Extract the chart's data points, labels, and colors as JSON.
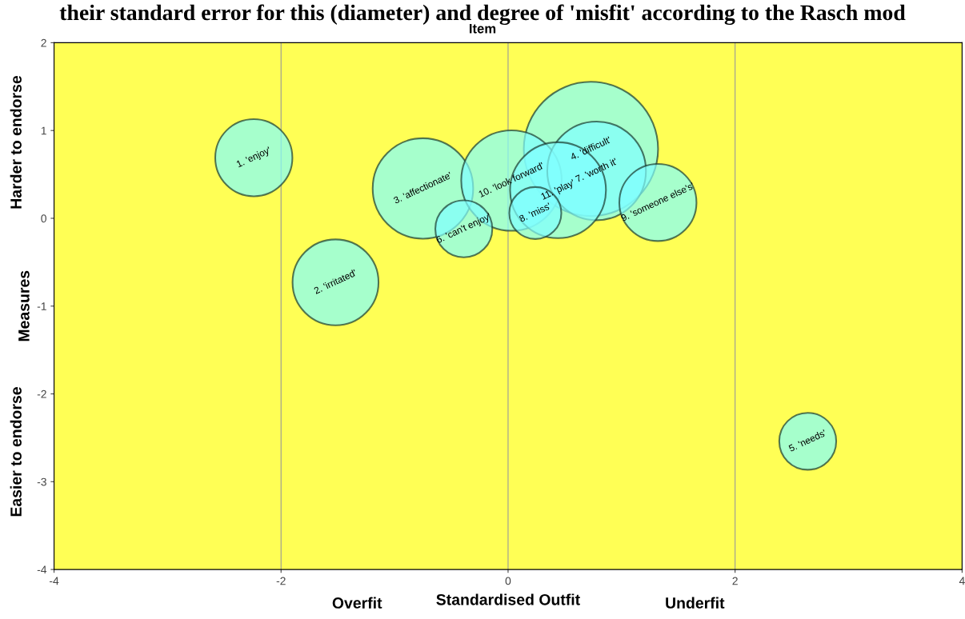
{
  "chart_data": {
    "type": "bubble",
    "title": "their standard error for this (diameter) and degree of 'misfit' according to the Rasch mod",
    "subtitle": "Item",
    "xlabel": "Standardised Outfit",
    "ylabel": "Measures",
    "x": [
      -2.24,
      -1.52,
      -0.75,
      0.73,
      2.64,
      -0.39,
      0.78,
      0.24,
      1.32,
      0.03,
      0.44
    ],
    "series": [
      {
        "color": "#80ffff",
        "values": [
          0.69,
          -0.73,
          0.34,
          0.79,
          -2.54,
          -0.12,
          0.54,
          0.06,
          0.18,
          0.43,
          0.32
        ],
        "sizes": [
          0.33,
          0.41,
          0.56,
          1,
          0.18,
          0.18,
          0.54,
          0.15,
          0.33,
          0.56,
          0.51
        ]
      }
    ],
    "annotations": [
      {
        "text": "1. 'enjoy'",
        "x": -2.24,
        "y": 0.69
      },
      {
        "text": "2. 'irritated'",
        "x": -1.52,
        "y": -0.73
      },
      {
        "text": "3. 'affectionate'",
        "x": -0.75,
        "y": 0.34
      },
      {
        "text": "4. 'difficult'",
        "x": 0.73,
        "y": 0.79
      },
      {
        "text": "5. 'needs'",
        "x": 2.64,
        "y": -2.54
      },
      {
        "text": "6. 'can't enjoy'",
        "x": -0.39,
        "y": -0.12
      },
      {
        "text": "7. 'worth it'",
        "x": 0.78,
        "y": 0.54
      },
      {
        "text": "8. 'miss'",
        "x": 0.24,
        "y": 0.06
      },
      {
        "text": "9. 'someone else's'",
        "x": 1.32,
        "y": 0.18
      },
      {
        "text": "10. 'look forward'",
        "x": 0.03,
        "y": 0.43
      },
      {
        "text": "11. 'play'",
        "x": 0.44,
        "y": 0.32
      },
      "Harder to endorse",
      "Easier to endorse",
      "Overfit",
      "Underfit"
    ],
    "xlim": [
      -4,
      4
    ],
    "ylim": [
      -4,
      2
    ],
    "xticks": [
      -4,
      -2,
      0,
      2,
      4
    ],
    "yticks": [
      -4,
      -3,
      -2,
      -1,
      0,
      1,
      2
    ],
    "grid": "x",
    "legend": false
  }
}
